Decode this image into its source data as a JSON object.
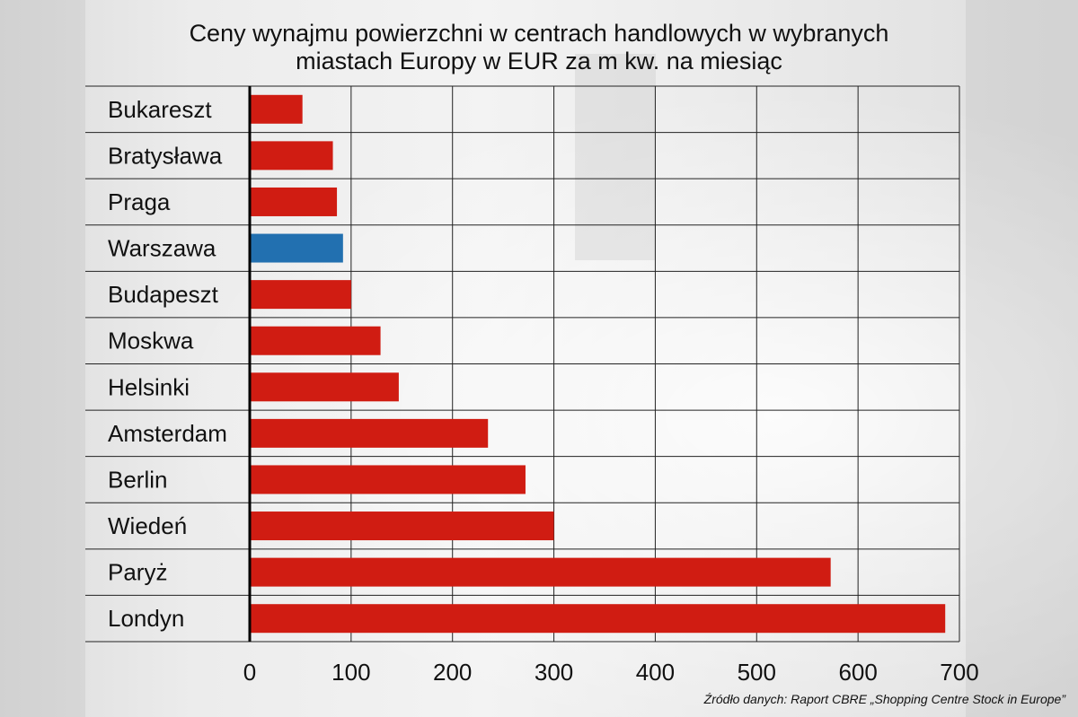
{
  "title_line1": "Ceny wynajmu powierzchni w centrach handlowych w wybranych",
  "title_line2": "miastach Europy w EUR za m kw. na miesiąc",
  "source": "Źródło danych: Raport CBRE „Shopping Centre Stock in Europe”",
  "chart_data": {
    "type": "bar",
    "orientation": "horizontal",
    "title": "Ceny wynajmu powierzchni w centrach handlowych w wybranych miastach Europy w EUR za m kw. na miesiąc",
    "categories": [
      "Bukareszt",
      "Bratysława",
      "Praga",
      "Warszawa",
      "Budapeszt",
      "Moskwa",
      "Helsinki",
      "Amsterdam",
      "Berlin",
      "Wiedeń",
      "Paryż",
      "Londyn"
    ],
    "values": [
      52,
      82,
      86,
      92,
      100,
      129,
      147,
      235,
      272,
      300,
      573,
      686
    ],
    "bar_colors": [
      "#d01c12",
      "#d01c12",
      "#d01c12",
      "#2270b0",
      "#d01c12",
      "#d01c12",
      "#d01c12",
      "#d01c12",
      "#d01c12",
      "#d01c12",
      "#d01c12",
      "#d01c12"
    ],
    "xlim": [
      0,
      700
    ],
    "xticks": [
      "0",
      "100",
      "200",
      "300",
      "400",
      "500",
      "600",
      "700"
    ],
    "grid": true,
    "legend": "none"
  }
}
